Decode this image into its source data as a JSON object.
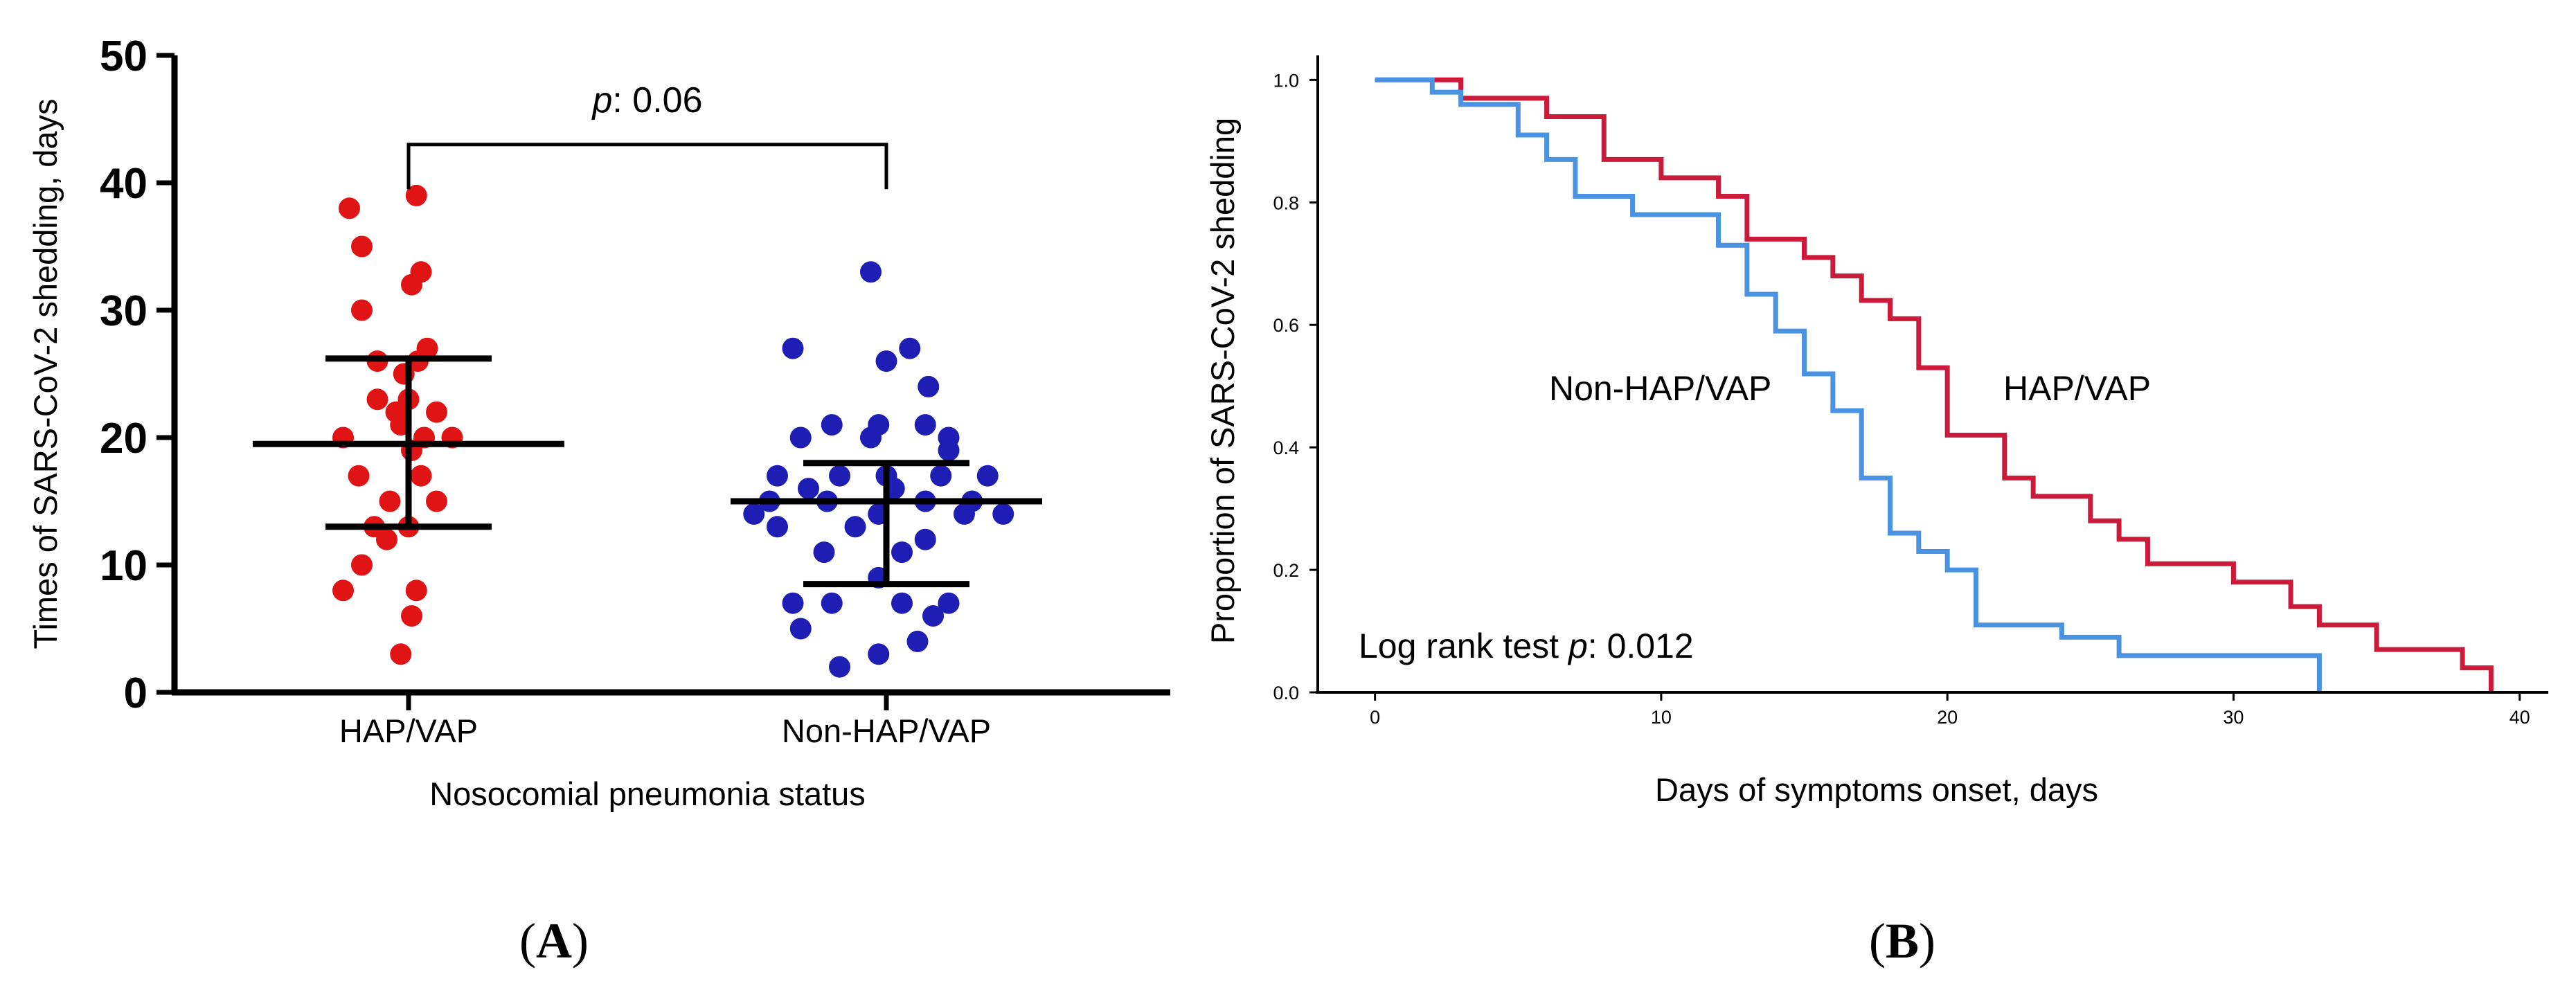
{
  "colors": {
    "hap": "#e01414",
    "non_hap": "#1e1eb4",
    "km_hap": "#cc1a3a",
    "km_non_hap": "#4a92e2",
    "axis": "#000000",
    "background": "#ffffff"
  },
  "chart_data": [
    {
      "id": "A",
      "type": "scatter",
      "panel_label": "A",
      "xlabel": "Nosocomial pneumonia status",
      "ylabel": "Times of SARS-CoV-2 shedding, days",
      "categories": [
        "HAP/VAP",
        "Non-HAP/VAP"
      ],
      "ylim": [
        0,
        50
      ],
      "yticks": [
        "0",
        "10",
        "20",
        "30",
        "40",
        "50"
      ],
      "grid": false,
      "series": [
        {
          "name": "HAP/VAP",
          "color": "#e01414",
          "points": [
            {
              "dx": -0.38,
              "y": 38
            },
            {
              "dx": 0.05,
              "y": 39
            },
            {
              "dx": -0.3,
              "y": 35
            },
            {
              "dx": 0.08,
              "y": 33
            },
            {
              "dx": 0.02,
              "y": 32
            },
            {
              "dx": -0.3,
              "y": 30
            },
            {
              "dx": 0.12,
              "y": 27
            },
            {
              "dx": -0.2,
              "y": 26
            },
            {
              "dx": 0.06,
              "y": 26
            },
            {
              "dx": -0.03,
              "y": 25
            },
            {
              "dx": -0.2,
              "y": 23
            },
            {
              "dx": 0.0,
              "y": 23
            },
            {
              "dx": -0.08,
              "y": 22
            },
            {
              "dx": 0.18,
              "y": 22
            },
            {
              "dx": -0.05,
              "y": 21
            },
            {
              "dx": -0.42,
              "y": 20
            },
            {
              "dx": 0.1,
              "y": 20
            },
            {
              "dx": 0.28,
              "y": 20
            },
            {
              "dx": 0.02,
              "y": 19
            },
            {
              "dx": -0.32,
              "y": 17
            },
            {
              "dx": 0.08,
              "y": 17
            },
            {
              "dx": -0.12,
              "y": 15
            },
            {
              "dx": 0.18,
              "y": 15
            },
            {
              "dx": -0.22,
              "y": 13
            },
            {
              "dx": 0.0,
              "y": 13
            },
            {
              "dx": -0.14,
              "y": 12
            },
            {
              "dx": -0.3,
              "y": 10
            },
            {
              "dx": -0.42,
              "y": 8
            },
            {
              "dx": 0.05,
              "y": 8
            },
            {
              "dx": 0.02,
              "y": 6
            },
            {
              "dx": -0.05,
              "y": 3
            }
          ]
        },
        {
          "name": "Non-HAP/VAP",
          "color": "#1e1eb4",
          "points": [
            {
              "dx": -0.1,
              "y": 33
            },
            {
              "dx": -0.6,
              "y": 27
            },
            {
              "dx": 0.15,
              "y": 27
            },
            {
              "dx": 0.0,
              "y": 26
            },
            {
              "dx": 0.27,
              "y": 24
            },
            {
              "dx": -0.35,
              "y": 21
            },
            {
              "dx": -0.05,
              "y": 21
            },
            {
              "dx": 0.25,
              "y": 21
            },
            {
              "dx": -0.55,
              "y": 20
            },
            {
              "dx": -0.1,
              "y": 20
            },
            {
              "dx": 0.4,
              "y": 20
            },
            {
              "dx": 0.4,
              "y": 19
            },
            {
              "dx": -0.7,
              "y": 17
            },
            {
              "dx": -0.3,
              "y": 17
            },
            {
              "dx": 0.0,
              "y": 17
            },
            {
              "dx": 0.35,
              "y": 17
            },
            {
              "dx": 0.65,
              "y": 17
            },
            {
              "dx": -0.5,
              "y": 16
            },
            {
              "dx": 0.05,
              "y": 16
            },
            {
              "dx": -0.75,
              "y": 15
            },
            {
              "dx": -0.38,
              "y": 15
            },
            {
              "dx": 0.25,
              "y": 15
            },
            {
              "dx": 0.55,
              "y": 15
            },
            {
              "dx": -0.85,
              "y": 14
            },
            {
              "dx": -0.05,
              "y": 14
            },
            {
              "dx": 0.5,
              "y": 14
            },
            {
              "dx": 0.75,
              "y": 14
            },
            {
              "dx": -0.7,
              "y": 13
            },
            {
              "dx": -0.2,
              "y": 13
            },
            {
              "dx": 0.25,
              "y": 12
            },
            {
              "dx": -0.4,
              "y": 11
            },
            {
              "dx": 0.1,
              "y": 11
            },
            {
              "dx": -0.05,
              "y": 9
            },
            {
              "dx": -0.6,
              "y": 7
            },
            {
              "dx": -0.35,
              "y": 7
            },
            {
              "dx": 0.1,
              "y": 7
            },
            {
              "dx": 0.4,
              "y": 7
            },
            {
              "dx": 0.3,
              "y": 6
            },
            {
              "dx": -0.55,
              "y": 5
            },
            {
              "dx": 0.2,
              "y": 4
            },
            {
              "dx": -0.05,
              "y": 3
            },
            {
              "dx": -0.3,
              "y": 2
            }
          ]
        }
      ],
      "summary": [
        {
          "category": "HAP/VAP",
          "median": 19.5,
          "q1": 13,
          "q3": 26.2
        },
        {
          "category": "Non-HAP/VAP",
          "median": 15,
          "q1": 8.5,
          "q3": 18
        }
      ],
      "annotation": {
        "label": "p",
        "value": ": 0.06",
        "bracket_y": 43
      }
    },
    {
      "id": "B",
      "type": "line",
      "panel_label": "B",
      "xlabel": "Days of symptoms onset, days",
      "ylabel": "Proportion of SARS-CoV-2 shedding",
      "xlim": [
        -2,
        41
      ],
      "ylim": [
        0,
        1.04
      ],
      "xticks": [
        "0",
        "10",
        "20",
        "30",
        "40"
      ],
      "yticks": [
        "0.0",
        "0.2",
        "0.4",
        "0.6",
        "0.8",
        "1.0"
      ],
      "grid": false,
      "series": [
        {
          "name": "HAP/VAP",
          "color": "#cc1a3a",
          "steps": [
            [
              0,
              1.0
            ],
            [
              3,
              0.97
            ],
            [
              6,
              0.94
            ],
            [
              8,
              0.87
            ],
            [
              10,
              0.84
            ],
            [
              12,
              0.81
            ],
            [
              13,
              0.74
            ],
            [
              15,
              0.71
            ],
            [
              16,
              0.68
            ],
            [
              17,
              0.64
            ],
            [
              18,
              0.61
            ],
            [
              19,
              0.53
            ],
            [
              20,
              0.42
            ],
            [
              22,
              0.35
            ],
            [
              23,
              0.32
            ],
            [
              25,
              0.28
            ],
            [
              26,
              0.25
            ],
            [
              27,
              0.21
            ],
            [
              30,
              0.18
            ],
            [
              32,
              0.14
            ],
            [
              33,
              0.11
            ],
            [
              35,
              0.07
            ],
            [
              38,
              0.04
            ],
            [
              39,
              0.0
            ]
          ]
        },
        {
          "name": "Non-HAP/VAP",
          "color": "#4a92e2",
          "steps": [
            [
              0,
              1.0
            ],
            [
              2,
              0.98
            ],
            [
              3,
              0.96
            ],
            [
              5,
              0.91
            ],
            [
              6,
              0.87
            ],
            [
              7,
              0.81
            ],
            [
              9,
              0.78
            ],
            [
              12,
              0.73
            ],
            [
              13,
              0.65
            ],
            [
              14,
              0.59
            ],
            [
              15,
              0.52
            ],
            [
              16,
              0.46
            ],
            [
              17,
              0.35
            ],
            [
              18,
              0.26
            ],
            [
              19,
              0.23
            ],
            [
              20,
              0.2
            ],
            [
              21,
              0.11
            ],
            [
              24,
              0.09
            ],
            [
              26,
              0.06
            ],
            [
              33,
              0.0
            ]
          ]
        }
      ],
      "series_labels": [
        "Non-HAP/VAP",
        "HAP/VAP"
      ],
      "annotation": {
        "prefix": "Log rank test ",
        "label": "p",
        "value": ": 0.012"
      }
    }
  ]
}
